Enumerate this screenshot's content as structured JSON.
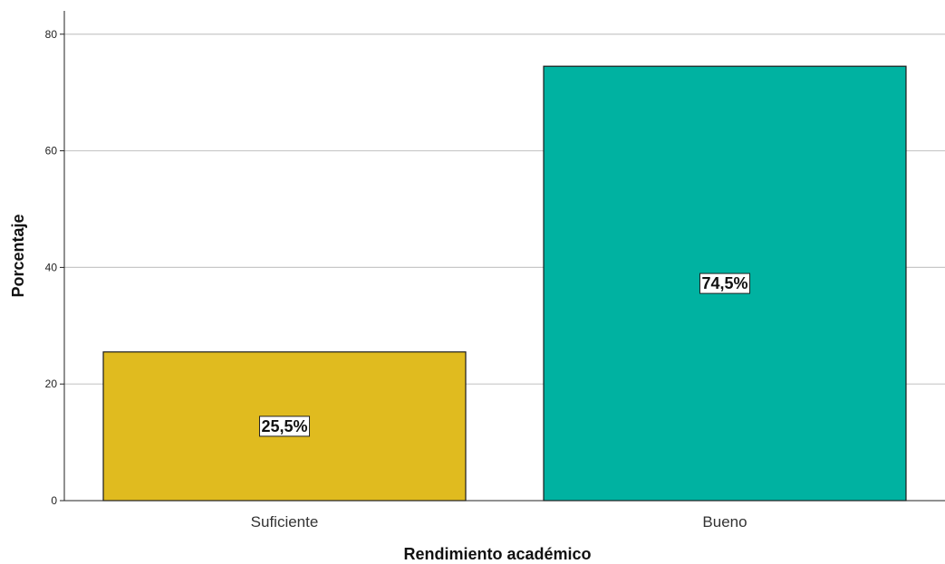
{
  "chart_data": {
    "type": "bar",
    "categories": [
      "Suficiente",
      "Bueno"
    ],
    "values": [
      25.5,
      74.5
    ],
    "data_labels": [
      "25,5%",
      "74,5%"
    ],
    "colors": [
      "#e0bb1f",
      "#00b2a1"
    ],
    "xlabel": "Rendimiento académico",
    "ylabel": "Porcentaje",
    "ylim": [
      0,
      84
    ],
    "yticks": [
      0,
      20,
      40,
      60,
      80
    ],
    "grid": true
  }
}
